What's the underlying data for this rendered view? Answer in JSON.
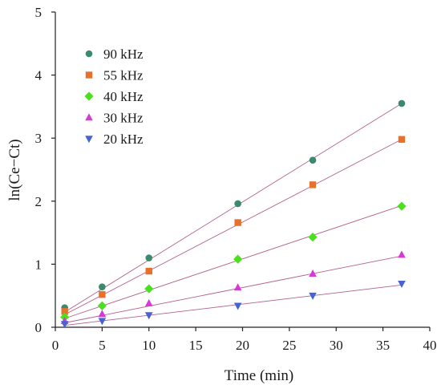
{
  "chart_data": {
    "type": "scatter",
    "xlabel": "Time (min)",
    "ylabel": "ln(Ce−Ct)",
    "xlim": [
      0,
      40
    ],
    "ylim": [
      0,
      5
    ],
    "x_ticks": [
      0,
      5,
      10,
      15,
      20,
      25,
      30,
      35,
      40
    ],
    "y_ticks": [
      0,
      1,
      2,
      3,
      4,
      5
    ],
    "grid": false,
    "legend_position": "top-left",
    "fit_line_color": "#b3608f",
    "series": [
      {
        "name": "90 kHz",
        "marker": "circle",
        "color": "#3a8a6b",
        "x": [
          1,
          5,
          10,
          19.5,
          27.5,
          37
        ],
        "y": [
          0.31,
          0.64,
          1.1,
          1.96,
          2.65,
          3.55
        ],
        "fit": [
          [
            1,
            0.24
          ],
          [
            37,
            3.55
          ]
        ]
      },
      {
        "name": "55 kHz",
        "marker": "square",
        "color": "#e8702a",
        "x": [
          1,
          5,
          10,
          19.5,
          27.5,
          37
        ],
        "y": [
          0.25,
          0.52,
          0.89,
          1.66,
          2.26,
          2.98
        ],
        "fit": [
          [
            1,
            0.2
          ],
          [
            37,
            2.98
          ]
        ]
      },
      {
        "name": "40 kHz",
        "marker": "diamond",
        "color": "#4be01e",
        "x": [
          1,
          5,
          10,
          19.5,
          27.5,
          37
        ],
        "y": [
          0.16,
          0.34,
          0.61,
          1.08,
          1.43,
          1.92
        ],
        "fit": [
          [
            1,
            0.14
          ],
          [
            37,
            1.93
          ]
        ]
      },
      {
        "name": "30 kHz",
        "marker": "triangle-up",
        "color": "#d63ad6",
        "x": [
          1,
          5,
          10,
          19.5,
          27.5,
          37
        ],
        "y": [
          0.1,
          0.21,
          0.38,
          0.63,
          0.85,
          1.15
        ],
        "fit": [
          [
            1,
            0.07
          ],
          [
            37,
            1.13
          ]
        ]
      },
      {
        "name": "20 kHz",
        "marker": "triangle-down",
        "color": "#4563d6",
        "x": [
          1,
          5,
          10,
          19.5,
          27.5,
          37
        ],
        "y": [
          0.05,
          0.1,
          0.19,
          0.34,
          0.5,
          0.69
        ],
        "fit": [
          [
            1,
            0.03
          ],
          [
            37,
            0.67
          ]
        ]
      }
    ]
  }
}
